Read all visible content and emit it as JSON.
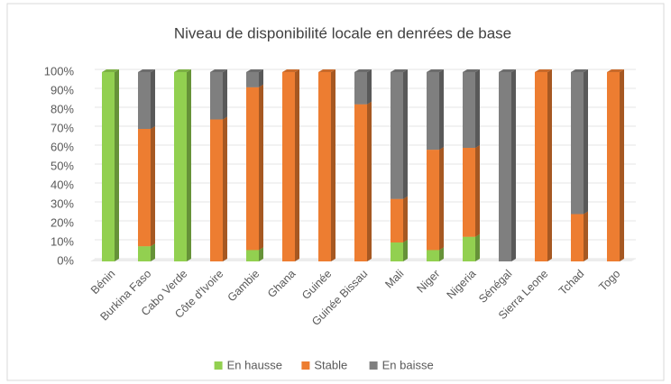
{
  "chart_data": {
    "type": "stacked_bar",
    "title": "Niveau de disponibilité locale en denrées de base",
    "categories": [
      "Bénin",
      "Burkina Faso",
      "Cabo Verde",
      "Côte d'Ivoire",
      "Gambie",
      "Ghana",
      "Guinée",
      "Guinée Bissau",
      "Mali",
      "Niger",
      "Nigeria",
      "Sénégal",
      "Sierra Leone",
      "Tchad",
      "Togo"
    ],
    "series": [
      {
        "name": "En hausse",
        "color": "#92d050",
        "values": [
          100,
          8,
          100,
          0,
          6,
          0,
          0,
          0,
          10,
          6,
          13,
          0,
          0,
          0,
          0
        ]
      },
      {
        "name": "Stable",
        "color": "#ed7d31",
        "values": [
          0,
          62,
          0,
          75,
          86,
          100,
          100,
          83,
          23,
          53,
          47,
          0,
          100,
          25,
          100
        ]
      },
      {
        "name": "En baisse",
        "color": "#7f7f7f",
        "values": [
          0,
          30,
          0,
          25,
          8,
          0,
          0,
          17,
          67,
          41,
          40,
          100,
          0,
          75,
          0
        ]
      }
    ],
    "ylim": [
      0,
      100
    ],
    "yticks": [
      {
        "value": 0,
        "label": "0%"
      },
      {
        "value": 10,
        "label": "10%"
      },
      {
        "value": 20,
        "label": "20%"
      },
      {
        "value": 30,
        "label": "30%"
      },
      {
        "value": 40,
        "label": "40%"
      },
      {
        "value": 50,
        "label": "50%"
      },
      {
        "value": 60,
        "label": "60%"
      },
      {
        "value": 70,
        "label": "70%"
      },
      {
        "value": 80,
        "label": "80%"
      },
      {
        "value": 90,
        "label": "90%"
      },
      {
        "value": 100,
        "label": "100%"
      }
    ],
    "grid": true,
    "legend": "bottom"
  }
}
